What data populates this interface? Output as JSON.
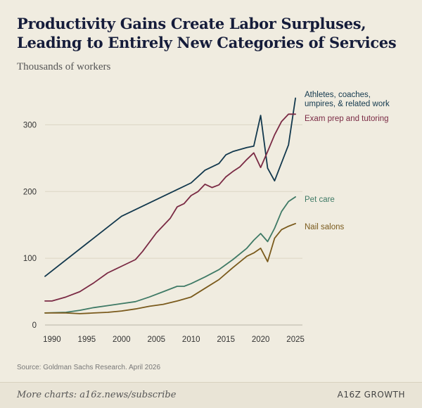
{
  "chart_data": {
    "type": "line",
    "title": "Productivity Gains Create Labor Surpluses, Leading to Entirely New Categories of Services",
    "subtitle": "Thousands of workers",
    "xlabel": "",
    "ylabel": "",
    "xlim": [
      1989,
      2026
    ],
    "ylim": [
      0,
      350
    ],
    "x_ticks": [
      1990,
      1995,
      2000,
      2005,
      2010,
      2015,
      2020,
      2025
    ],
    "y_ticks": [
      0,
      100,
      200,
      300
    ],
    "grid": "horizontal",
    "series": [
      {
        "name": "Athletes, coaches, umpires, & related work",
        "label_lines": [
          "Athletes, coaches,",
          "umpires, & related work"
        ],
        "color": "#12384d",
        "x": [
          1989,
          2000,
          2010,
          2012,
          2014,
          2015,
          2016,
          2018,
          2019,
          2020,
          2021,
          2022,
          2024,
          2025
        ],
        "y": [
          73,
          163,
          213,
          232,
          242,
          255,
          260,
          266,
          268,
          314,
          235,
          216,
          270,
          340
        ]
      },
      {
        "name": "Exam prep and tutoring",
        "label_lines": [
          "Exam prep and tutoring"
        ],
        "color": "#7a2a44",
        "x": [
          1989,
          1990,
          1992,
          1994,
          1996,
          1998,
          2000,
          2002,
          2003,
          2005,
          2007,
          2008,
          2009,
          2010,
          2011,
          2012,
          2013,
          2014,
          2015,
          2016,
          2017,
          2018,
          2019,
          2020,
          2021,
          2022,
          2023,
          2024,
          2025
        ],
        "y": [
          36,
          36,
          42,
          50,
          63,
          78,
          88,
          98,
          110,
          138,
          160,
          177,
          182,
          194,
          200,
          211,
          206,
          210,
          222,
          230,
          237,
          248,
          258,
          236,
          260,
          285,
          305,
          316,
          316
        ]
      },
      {
        "name": "Pet care",
        "label_lines": [
          "Pet care"
        ],
        "color": "#3f7a66",
        "x": [
          1989,
          1992,
          1994,
          1996,
          1998,
          2000,
          2002,
          2004,
          2006,
          2008,
          2009,
          2010,
          2012,
          2014,
          2016,
          2018,
          2019,
          2020,
          2021,
          2022,
          2023,
          2024,
          2025
        ],
        "y": [
          18,
          19,
          22,
          26,
          29,
          32,
          35,
          42,
          50,
          58,
          58,
          62,
          72,
          83,
          98,
          115,
          127,
          137,
          125,
          145,
          170,
          185,
          192
        ]
      },
      {
        "name": "Nail salons",
        "label_lines": [
          "Nail salons"
        ],
        "color": "#7a5a1c",
        "x": [
          1989,
          1992,
          1994,
          1996,
          1998,
          2000,
          2002,
          2004,
          2006,
          2008,
          2010,
          2012,
          2014,
          2016,
          2018,
          2019,
          2020,
          2021,
          2022,
          2023,
          2024,
          2025
        ],
        "y": [
          18,
          18,
          17,
          18,
          19,
          21,
          24,
          28,
          31,
          36,
          42,
          55,
          68,
          86,
          103,
          108,
          115,
          95,
          130,
          143,
          148,
          152
        ]
      }
    ]
  },
  "source": "Source: Goldman Sachs Research. April 2026",
  "footer": {
    "more": "More charts: a16z.news/subscribe",
    "brand": "A16Z GROWTH"
  }
}
